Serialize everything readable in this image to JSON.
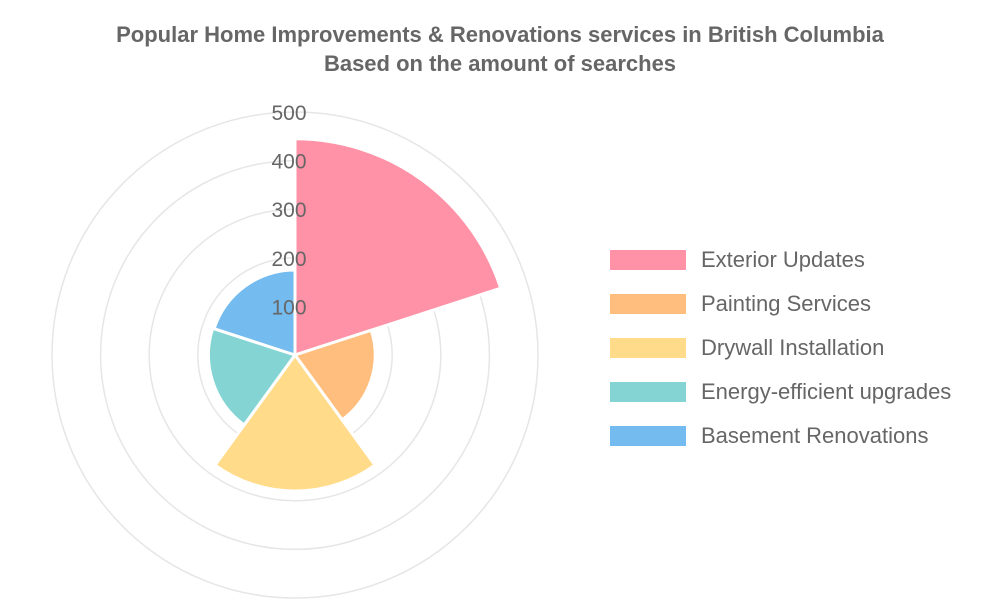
{
  "title": {
    "line1": "Popular Home Improvements & Renovations services in British Columbia",
    "line2": "Based on the amount of searches"
  },
  "chart_data": {
    "type": "polarArea",
    "title": "Popular Home Improvements & Renovations services in British Columbia",
    "subtitle": "Based on the amount of searches",
    "categories": [
      "Exterior Updates",
      "Painting Services",
      "Drywall Installation",
      "Energy-efficient upgrades",
      "Basement Renovations"
    ],
    "values": [
      445,
      165,
      280,
      178,
      175
    ],
    "colors": [
      "#ff92a6",
      "#ffbe7d",
      "#ffdb8a",
      "#84d4d4",
      "#74bbef"
    ],
    "r_ticks": [
      100,
      200,
      300,
      400,
      500
    ],
    "r_range": [
      0,
      500
    ],
    "grid": true,
    "legend_position": "right"
  }
}
